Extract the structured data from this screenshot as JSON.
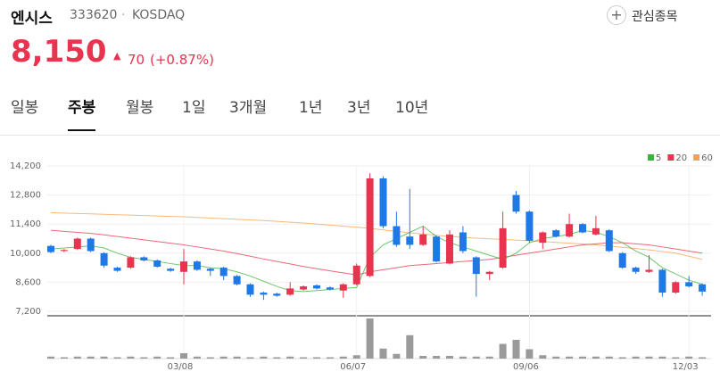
{
  "header": {
    "name": "엔시스",
    "code": "333620",
    "market": "KOSDAQ",
    "watch": "관심종목",
    "price": "8,150",
    "change": "70",
    "change_pct": "(+0.87%)"
  },
  "tabs": [
    "일봉",
    "주봉",
    "월봉",
    "1일",
    "3개월",
    "1년",
    "3년",
    "10년"
  ],
  "selected_tab": 1,
  "chart_data": {
    "type": "candlestick",
    "categories": [
      null,
      null,
      null,
      null,
      null,
      null,
      null,
      null,
      null,
      null,
      "03/08",
      null,
      null,
      null,
      null,
      null,
      null,
      null,
      null,
      null,
      null,
      null,
      null,
      "06/07",
      null,
      null,
      null,
      null,
      null,
      null,
      null,
      null,
      null,
      null,
      null,
      null,
      "09/06",
      null,
      null,
      null,
      null,
      null,
      null,
      null,
      null,
      null,
      null,
      null,
      "12/03",
      null
    ],
    "open": [
      10350,
      10100,
      10200,
      10700,
      10000,
      9300,
      9300,
      9800,
      9650,
      9250,
      9100,
      9600,
      9250,
      9300,
      8900,
      8500,
      8100,
      8050,
      8000,
      8250,
      8450,
      8350,
      8200,
      8500,
      8900,
      13600,
      11300,
      10800,
      10400,
      10800,
      9500,
      11000,
      9800,
      9000,
      9300,
      12800,
      12000,
      10500,
      11100,
      10800,
      11400,
      10900,
      11100,
      10000,
      9300,
      9100,
      9200,
      8100,
      8600,
      8500
    ],
    "high": [
      10400,
      10200,
      10750,
      10750,
      10050,
      9350,
      9850,
      9850,
      9700,
      9300,
      10200,
      9650,
      9300,
      9350,
      8950,
      8550,
      8150,
      8100,
      8600,
      8450,
      8500,
      8400,
      8550,
      9500,
      13850,
      13700,
      12000,
      13100,
      11300,
      10850,
      11100,
      11300,
      9850,
      9150,
      12000,
      13000,
      12050,
      11050,
      11150,
      11900,
      11450,
      11800,
      11150,
      10050,
      9350,
      9900,
      9250,
      8650,
      8900,
      8550
    ],
    "low": [
      10000,
      10050,
      10150,
      10050,
      9300,
      9100,
      9250,
      9600,
      9300,
      9100,
      8500,
      9150,
      8900,
      8700,
      8450,
      7900,
      7750,
      7900,
      7950,
      8200,
      8250,
      8200,
      7850,
      8450,
      8850,
      11200,
      10300,
      10200,
      10350,
      9550,
      9450,
      10000,
      7900,
      8700,
      9250,
      11900,
      10500,
      10200,
      10750,
      10750,
      10950,
      10850,
      10050,
      9250,
      9000,
      9050,
      7900,
      8050,
      8350,
      7950
    ],
    "close": [
      10050,
      10150,
      10700,
      10100,
      9400,
      9150,
      9800,
      9650,
      9350,
      9150,
      9600,
      9200,
      9150,
      8900,
      8500,
      8000,
      8000,
      7950,
      8300,
      8400,
      8300,
      8250,
      8500,
      9400,
      13600,
      11300,
      10400,
      10400,
      10900,
      9600,
      10900,
      10100,
      9000,
      9100,
      11200,
      12000,
      10600,
      11000,
      10800,
      11400,
      11000,
      11200,
      10100,
      9300,
      9100,
      9200,
      8100,
      8600,
      8400,
      8150
    ],
    "up_color": "#e8344e",
    "down_color": "#1e78e6",
    "series": [
      {
        "name": "5",
        "color": "#3cb43c",
        "values": [
          10200,
          10250,
          10300,
          10350,
          10250,
          10000,
          9800,
          9700,
          9600,
          9500,
          9400,
          9400,
          9300,
          9250,
          9100,
          8900,
          8650,
          8400,
          8200,
          8150,
          8200,
          8250,
          8300,
          8350,
          9800,
          10400,
          10700,
          11000,
          11300,
          10800,
          10500,
          10300,
          10100,
          9900,
          9700,
          10000,
          10500,
          10700,
          10800,
          10900,
          11100,
          11000,
          10800,
          10500,
          10100,
          9800,
          9300,
          9000,
          8700,
          8500
        ]
      },
      {
        "name": "20",
        "color": "#e8344e",
        "values": [
          11100,
          11050,
          11000,
          10950,
          10880,
          10800,
          10720,
          10640,
          10560,
          10480,
          10400,
          10300,
          10200,
          10100,
          9980,
          9850,
          9720,
          9600,
          9480,
          9360,
          9250,
          9150,
          9050,
          8950,
          9100,
          9200,
          9300,
          9400,
          9450,
          9500,
          9550,
          9600,
          9650,
          9700,
          9800,
          9900,
          10000,
          10100,
          10200,
          10300,
          10400,
          10450,
          10500,
          10500,
          10450,
          10400,
          10300,
          10200,
          10100,
          10000
        ]
      },
      {
        "name": "60",
        "color": "#f5a050",
        "values": [
          11950,
          11930,
          11910,
          11890,
          11870,
          11850,
          11830,
          11810,
          11790,
          11770,
          11750,
          11720,
          11690,
          11660,
          11630,
          11600,
          11570,
          11530,
          11490,
          11450,
          11400,
          11350,
          11300,
          11250,
          11200,
          11120,
          11050,
          10980,
          10920,
          10860,
          10800,
          10760,
          10720,
          10690,
          10660,
          10630,
          10600,
          10560,
          10520,
          10480,
          10440,
          10400,
          10340,
          10280,
          10220,
          10160,
          10080,
          10000,
          9850,
          9700
        ]
      }
    ],
    "volume": [
      3,
      2,
      3,
      3,
      3,
      2,
      3,
      2,
      3,
      2,
      8,
      3,
      2,
      3,
      3,
      2,
      3,
      2,
      3,
      2,
      2,
      2,
      3,
      5,
      60,
      15,
      7,
      35,
      4,
      4,
      4,
      3,
      3,
      3,
      22,
      28,
      14,
      5,
      3,
      3,
      3,
      3,
      3,
      2,
      3,
      3,
      3,
      2,
      3,
      2
    ],
    "volume_color": "#9a9a9a",
    "ylim": [
      7200,
      14200
    ],
    "yticks": [
      {
        "value": 7200,
        "label": "7,200"
      },
      {
        "value": 8600,
        "label": "8,600"
      },
      {
        "value": 10000,
        "label": "10,000"
      },
      {
        "value": 11400,
        "label": "11,400"
      },
      {
        "value": 12800,
        "label": "12,800"
      },
      {
        "value": 14200,
        "label": "14,200"
      }
    ],
    "grid": true
  }
}
